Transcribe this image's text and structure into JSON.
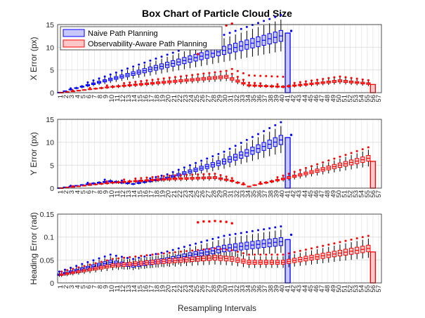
{
  "chart_data": {
    "type": "box",
    "title": "Box Chart of Particle Cloud Size",
    "xlabel": "Resampling Intervals",
    "categories": [
      1,
      2,
      3,
      4,
      5,
      6,
      7,
      8,
      9,
      10,
      11,
      12,
      13,
      14,
      15,
      16,
      17,
      18,
      19,
      20,
      21,
      22,
      23,
      24,
      25,
      26,
      27,
      28,
      29,
      30,
      31,
      32,
      33,
      34,
      35,
      36,
      37,
      38,
      39,
      40,
      41,
      42,
      43,
      44,
      45,
      46,
      47,
      48,
      49,
      50,
      51,
      52,
      53,
      54,
      55,
      56,
      57
    ],
    "legend": {
      "placement": "top-left"
    },
    "series_styles": [
      {
        "name": "Naive Path Planning",
        "color": "#0000ff",
        "fill": "#c8c8ff"
      },
      {
        "name": "Observability-Aware Path Planning",
        "color": "#ff0000",
        "fill": "#ffc8c8"
      }
    ],
    "panels": [
      {
        "ylabel": "X Error (px)",
        "ylim": [
          0,
          15
        ],
        "yticks": [
          0,
          5,
          10,
          15
        ],
        "series": [
          {
            "name": "Naive Path Planning",
            "intervals": [
              1,
              41
            ],
            "median_start": 0.05,
            "median_end": 12.5,
            "outlier_points": [
              [
                41,
                13.6
              ]
            ],
            "notes": "interval 41 has a tall thin box spanning roughly 0 to 13"
          },
          {
            "name": "Observability-Aware Path Planning",
            "intervals": [
              1,
              57
            ],
            "median_profile": [
              [
                1,
                0.05
              ],
              [
                10,
                1.3
              ],
              [
                20,
                2.4
              ],
              [
                30,
                3.5
              ],
              [
                34,
                1.6
              ],
              [
                40,
                1.3
              ],
              [
                50,
                2.6
              ],
              [
                55,
                2.0
              ],
              [
                57,
                0.6
              ]
            ],
            "outlier_points": [
              [
                30,
                14.8
              ],
              [
                31,
                15.2
              ],
              [
                25,
                8.5
              ]
            ],
            "notes": "interval 56 has a tall thin box spanning roughly 0 to 2.5"
          }
        ]
      },
      {
        "ylabel": "Y Error (px)",
        "ylim": [
          0,
          15
        ],
        "yticks": [
          0,
          5,
          10,
          15
        ],
        "series": [
          {
            "name": "Naive Path Planning",
            "intervals": [
              1,
              41
            ],
            "median_profile": [
              [
                1,
                0.05
              ],
              [
                10,
                1.5
              ],
              [
                14,
                0.9
              ],
              [
                20,
                2.2
              ],
              [
                30,
                5.8
              ],
              [
                40,
                10.5
              ]
            ],
            "outlier_points": [
              [
                41,
                11.6
              ]
            ],
            "notes": "interval 41 has a tall thin box spanning roughly 0 to 10.5"
          },
          {
            "name": "Observability-Aware Path Planning",
            "intervals": [
              1,
              57
            ],
            "median_profile": [
              [
                1,
                0.05
              ],
              [
                10,
                1.2
              ],
              [
                20,
                2.0
              ],
              [
                28,
                2.3
              ],
              [
                31,
                1.6
              ],
              [
                34,
                0.4
              ],
              [
                40,
                2.0
              ],
              [
                50,
                5.0
              ],
              [
                55,
                6.5
              ],
              [
                57,
                0.3
              ]
            ],
            "notes": "interval 56 has a tall thin box spanning roughly 0 to 5.5"
          }
        ]
      },
      {
        "ylabel": "Heading Error (rad)",
        "ylim": [
          0,
          0.15
        ],
        "yticks": [
          0,
          0.05,
          0.1,
          0.15
        ],
        "series": [
          {
            "name": "Naive Path Planning",
            "intervals": [
              1,
              41
            ],
            "median_profile": [
              [
                1,
                0.018
              ],
              [
                10,
                0.045
              ],
              [
                14,
                0.038
              ],
              [
                20,
                0.05
              ],
              [
                30,
                0.075
              ],
              [
                40,
                0.09
              ]
            ],
            "outlier_points": [
              [
                41,
                0.105
              ]
            ],
            "notes": "interval 41 has a tall thin box spanning roughly 0 to 0.09"
          },
          {
            "name": "Observability-Aware Path Planning",
            "intervals": [
              1,
              57
            ],
            "median_profile": [
              [
                1,
                0.018
              ],
              [
                10,
                0.038
              ],
              [
                20,
                0.048
              ],
              [
                28,
                0.055
              ],
              [
                31,
                0.052
              ],
              [
                34,
                0.045
              ],
              [
                40,
                0.045
              ],
              [
                50,
                0.065
              ],
              [
                55,
                0.075
              ],
              [
                57,
                0.005
              ]
            ],
            "outlier_points": [
              [
                25,
                0.132
              ],
              [
                26,
                0.134
              ],
              [
                27,
                0.134
              ],
              [
                28,
                0.135
              ],
              [
                29,
                0.134
              ],
              [
                30,
                0.133
              ],
              [
                31,
                0.13
              ]
            ],
            "notes": "interval 56 has a tall thin box spanning roughly 0 to 0.07"
          }
        ]
      }
    ]
  }
}
